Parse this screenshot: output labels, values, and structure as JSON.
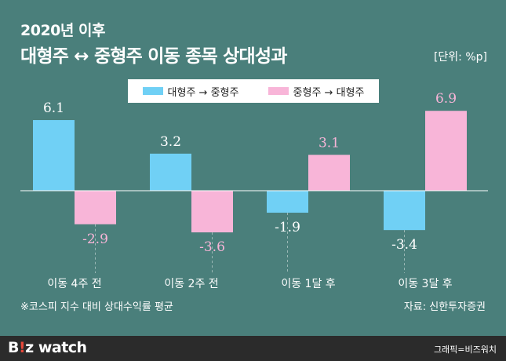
{
  "header": {
    "subtitle": "2020년 이후",
    "title": "대형주 ↔ 중형주 이동 종목 상대성과",
    "unit": "[단위: %p]"
  },
  "legend": [
    {
      "label": "대형주 → 중형주",
      "color": "#70d0f5"
    },
    {
      "label": "중형주 → 대형주",
      "color": "#f8b5d8"
    }
  ],
  "footnote": "※코스피 지수 대비 상대수익률 평균",
  "source": "자료: 신한투자증권",
  "footer": {
    "logo_prefix": "B",
    "logo_accent": "!",
    "logo_suffix": "z watch",
    "credit": "그래픽=비즈워치"
  },
  "chart_data": {
    "type": "bar",
    "categories": [
      "이동 4주 전",
      "이동 2주 전",
      "이동 1달 후",
      "이동 3달 후"
    ],
    "series": [
      {
        "name": "대형주 → 중형주",
        "values": [
          6.1,
          3.2,
          -1.9,
          -3.4
        ],
        "color": "#70d0f5"
      },
      {
        "name": "중형주 → 대형주",
        "values": [
          -2.9,
          -3.6,
          3.1,
          6.9
        ],
        "color": "#f8b5d8"
      }
    ],
    "value_labels": [
      [
        "6.1",
        "3.2",
        "-1.9",
        "-3.4"
      ],
      [
        "-2.9",
        "-3.6",
        "3.1",
        "6.9"
      ]
    ],
    "label_colors": [
      "#ffffff",
      "#f8b5d8"
    ],
    "ylim": [
      -4,
      7
    ],
    "xlabel": "",
    "ylabel": "",
    "grid": false,
    "legend_position": "top-center"
  }
}
